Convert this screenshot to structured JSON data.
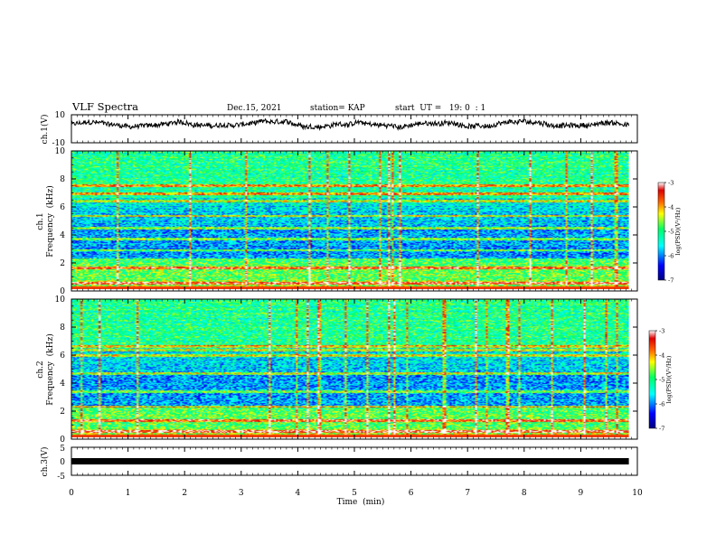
{
  "header": {
    "title": "VLF Spectra",
    "date": "Dec.15, 2021",
    "station": "station= KAP",
    "start": "start  UT =   19: 0  : 1"
  },
  "chart_data": [
    {
      "type": "line",
      "ylabel": "ch.1(V)",
      "ylim": [
        -10,
        10
      ],
      "yticks": [
        "10",
        "-10"
      ],
      "xlim": [
        0,
        10
      ],
      "x_end": 9.85,
      "baseline": 3,
      "amplitude": 2.5
    },
    {
      "type": "heatmap",
      "ylabel": "ch.1\nFrequency (kHz)",
      "ylabel_lines": [
        "ch.1",
        "Frequency  (kHz)"
      ],
      "ylim": [
        0,
        10
      ],
      "yticks": [
        "0",
        "2",
        "4",
        "6",
        "8",
        "10"
      ],
      "xlim": [
        0,
        10
      ],
      "x_end": 9.85,
      "colorbar": {
        "label": "log(PSD)(V²/Hz)",
        "range": [
          -7,
          -3
        ],
        "ticks": [
          "-3",
          "-4",
          "-5",
          "-6",
          "-7"
        ]
      },
      "bands_khz": [
        0.4,
        1.5,
        2.8,
        3.6,
        4.4,
        5.3,
        6.4,
        6.9,
        7.5
      ]
    },
    {
      "type": "heatmap",
      "ylabel": "ch.2\nFrequency (kHz)",
      "ylabel_lines": [
        "ch.2",
        "Frequency  (kHz)"
      ],
      "ylim": [
        0,
        10
      ],
      "yticks": [
        "0",
        "2",
        "4",
        "6",
        "8",
        "10"
      ],
      "xlim": [
        0,
        10
      ],
      "x_end": 9.85,
      "colorbar": {
        "label": "log(PSD)(V²/Hz)",
        "range": [
          -7,
          -3
        ],
        "ticks": [
          "-3",
          "-4",
          "-5",
          "-6",
          "-7"
        ]
      },
      "bands_khz": [
        0.4,
        1.2,
        2.2,
        3.3,
        4.6,
        5.9,
        6.3,
        6.6
      ]
    },
    {
      "type": "line",
      "ylabel": "ch.3(V)",
      "ylim": [
        -5,
        5
      ],
      "yticks": [
        "5",
        "0",
        "-5"
      ],
      "xlim": [
        0,
        10
      ],
      "x_end": 9.85,
      "baseline": 0
    }
  ],
  "xaxis": {
    "label": "Time  (min)",
    "ticks": [
      "0",
      "1",
      "2",
      "3",
      "4",
      "5",
      "6",
      "7",
      "8",
      "9",
      "10"
    ]
  },
  "colors": {
    "scale": [
      "#00007f",
      "#0000ff",
      "#00ffff",
      "#00ff66",
      "#ffff00",
      "#ff6600",
      "#dd0000",
      "#ffffff"
    ]
  }
}
